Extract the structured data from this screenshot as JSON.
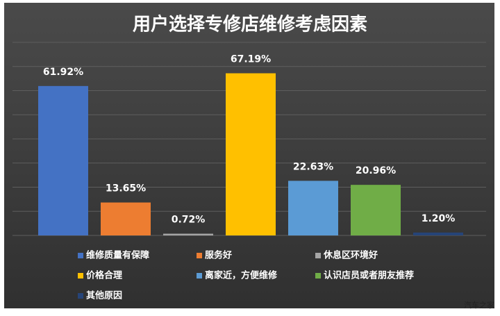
{
  "chart_data": {
    "type": "bar",
    "title": "用户选择专修店维修考虑因素",
    "categories": [
      "维修质量有保障",
      "服务好",
      "休息区环境好",
      "价格合理",
      "离家近，方便维修",
      "认识店员或者朋友推荐",
      "其他原因"
    ],
    "values": [
      61.92,
      13.65,
      0.72,
      67.19,
      22.63,
      20.96,
      1.2
    ],
    "value_labels": [
      "61.92%",
      "13.65%",
      "0.72%",
      "67.19%",
      "22.63%",
      "20.96%",
      "1.20%"
    ],
    "colors": [
      "#4472c4",
      "#ed7d31",
      "#a5a5a5",
      "#ffc000",
      "#5b9bd5",
      "#70ad47",
      "#264478"
    ],
    "ylim": [
      0,
      80
    ],
    "yticks": [
      0,
      10,
      20,
      30,
      40,
      50,
      60,
      70,
      80
    ],
    "grid": true,
    "watermark": "汽车之家"
  }
}
